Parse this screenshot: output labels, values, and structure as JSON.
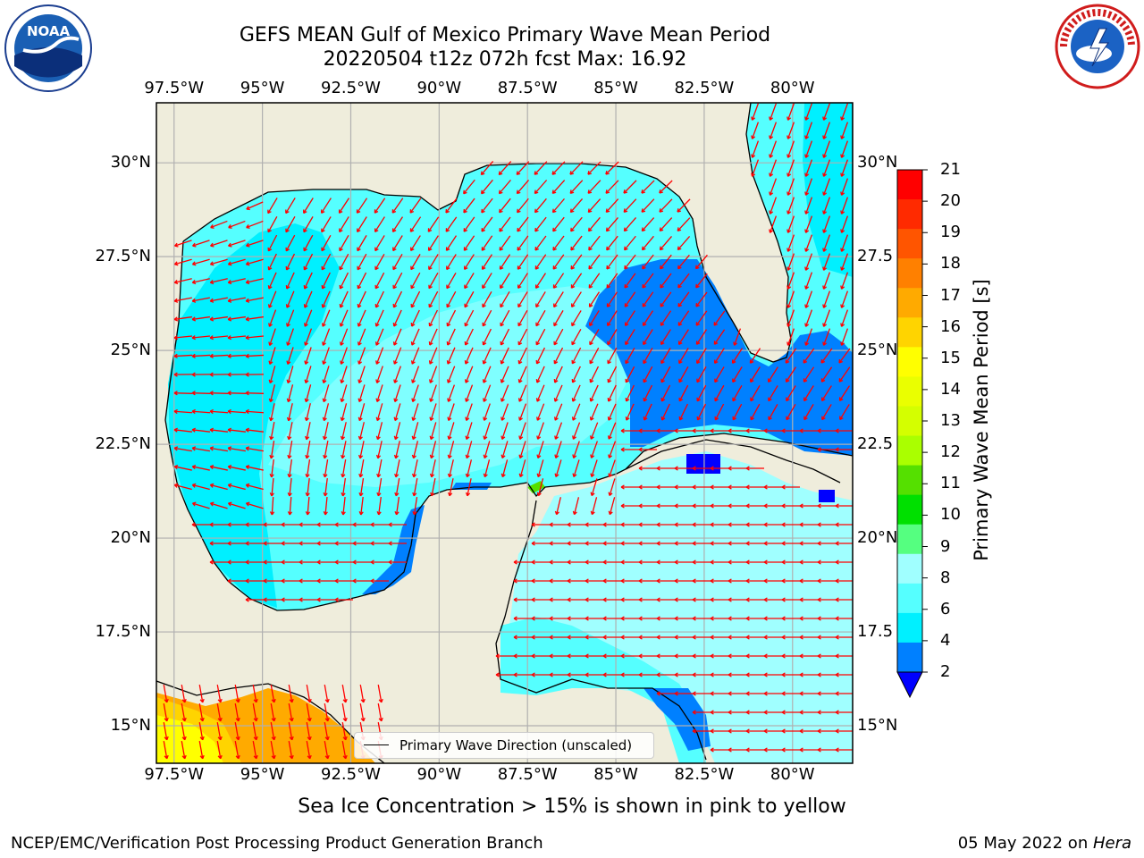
{
  "title": {
    "line1": "GEFS MEAN Gulf of Mexico Primary Wave Mean Period",
    "line2": "20220504 t12z 072h fcst   Max: 16.92"
  },
  "logos": {
    "left": {
      "name": "noaa-logo",
      "text": "NOAA"
    },
    "right": {
      "name": "nws-logo",
      "text": "NATIONAL WEATHER SERVICE"
    }
  },
  "map": {
    "lon_labels": [
      "97.5°W",
      "95°W",
      "92.5°W",
      "90°W",
      "87.5°W",
      "85°W",
      "82.5°W",
      "80°W"
    ],
    "lat_labels_left": [
      "30°N",
      "27.5°N",
      "25°N",
      "22.5°N",
      "20°N",
      "17.5°N",
      "15°N"
    ],
    "lat_labels_right": [
      "30°N",
      "27.5",
      "25°N",
      "22.5",
      "20°N",
      "17.5",
      "15°N"
    ],
    "extent": {
      "lon_min": -98,
      "lon_max": -78.3,
      "lat_min": 14,
      "lat_max": 31.6
    },
    "land_color": "#efeddc",
    "arrow_color": "#ff0000",
    "grid_color": "#b0b0b0"
  },
  "colorbar": {
    "label": "Primary Wave Mean Period [s]",
    "ticks": [
      "21",
      "20",
      "19",
      "18",
      "17",
      "16",
      "15",
      "14",
      "13",
      "12",
      "11",
      "10",
      "9",
      "8",
      "6",
      "4",
      "2"
    ],
    "colors": [
      "#ff0000",
      "#ff2a00",
      "#ff5500",
      "#ff8000",
      "#ffaa00",
      "#ffd400",
      "#ffff00",
      "#eaff00",
      "#d4ff00",
      "#aaff00",
      "#55e000",
      "#00e000",
      "#55ff80",
      "#a0ffff",
      "#55ffff",
      "#00f0ff",
      "#0080ff"
    ],
    "extend_color": "#0000ff"
  },
  "legend": {
    "label": "Primary Wave Direction (unscaled)"
  },
  "ice_note": "Sea Ice Concentration > 15% is shown in pink to yellow",
  "footer": {
    "left": "NCEP/EMC/Verification Post Processing Product Generation Branch",
    "date": "05 May 2022 on ",
    "host": "Hera"
  }
}
